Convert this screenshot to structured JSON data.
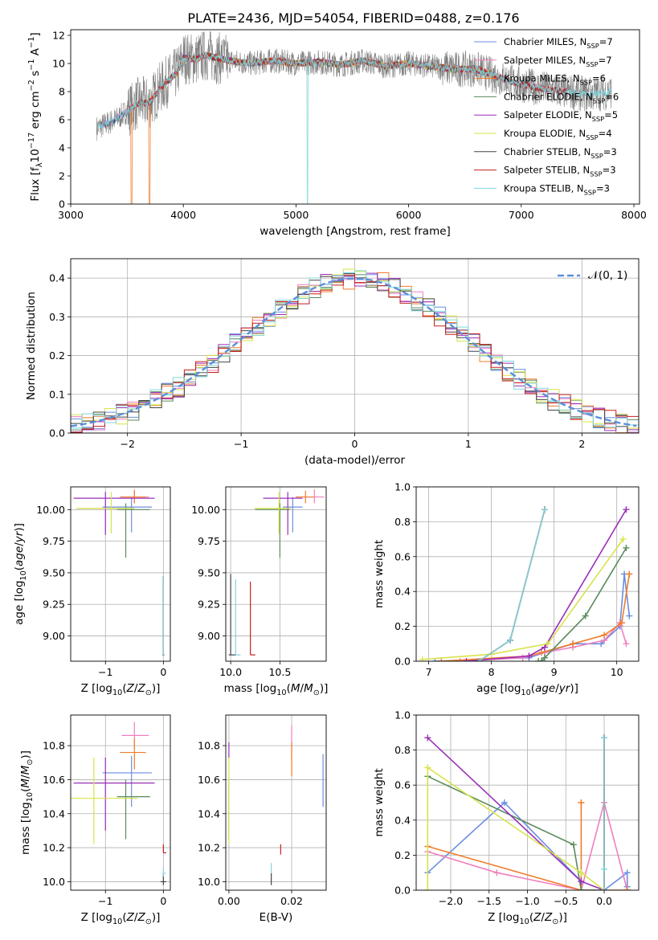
{
  "title": "PLATE=2436, MJD=54054, FIBERID=0488, z=0.176",
  "colors": [
    "#6a8ee0",
    "#f07fbf",
    "#f07c2a",
    "#5a8a5e",
    "#9a2fb8",
    "#d8e34a",
    "#444444",
    "#c81e1e",
    "#7fd6de"
  ],
  "series_names": [
    "Chabrier MILES, N<sub>SSP</sub>=7",
    "Salpeter MILES, N<sub>SSP</sub>=7",
    "Kroupa MILES, N<sub>SSP</sub>=6",
    "Chabrier ELODIE, N<sub>SSP</sub>=6",
    "Salpeter ELODIE, N<sub>SSP</sub>=5",
    "Kroupa ELODIE, N<sub>SSP</sub>=4",
    "Chabrier STELIB, N<sub>SSP</sub>=3",
    "Salpeter STELIB, N<sub>SSP</sub>=3",
    "Kroupa STELIB, N<sub>SSP</sub>=3"
  ],
  "chart_data": [
    {
      "id": "spectrum",
      "type": "line",
      "title": "PLATE=2436, MJD=54054, FIBERID=0488, z=0.176",
      "xlabel": "wavelength [Angstrom, rest frame]",
      "ylabel": "Flux [f<sub>λ</sub>10<sup>−17</sup> erg cm<sup>−2</sup> s<sup>−1</sup> A<sup>−1</sup>]",
      "xlim": [
        3000,
        8050
      ],
      "ylim": [
        0,
        12.4
      ],
      "xticks": [
        3000,
        4000,
        5000,
        6000,
        7000,
        8000
      ],
      "yticks": [
        0,
        2,
        4,
        6,
        8,
        10,
        12
      ],
      "legend": "right",
      "data_color": "#808080",
      "continuum": {
        "x": [
          3230,
          3400,
          3500,
          3600,
          3700,
          3800,
          3950,
          4000,
          4100,
          4200,
          4400,
          4600,
          4800,
          5000,
          5200,
          5400,
          5600,
          5800,
          6000,
          6200,
          6400,
          6600,
          6800,
          7000,
          7200,
          7400,
          7600,
          7800
        ],
        "y": [
          5.4,
          6.0,
          6.6,
          7.2,
          7.2,
          8.3,
          9.4,
          10.4,
          10.3,
          10.6,
          10.2,
          10.0,
          10.2,
          10.0,
          10.1,
          9.9,
          10.2,
          9.8,
          10.0,
          9.8,
          9.6,
          9.6,
          9.0,
          8.5,
          8.2,
          8.0,
          7.8,
          8.0
        ]
      }
    },
    {
      "id": "residuals",
      "type": "histogram",
      "xlabel": "(data-model)/error",
      "ylabel": "Normed distribution",
      "xlim": [
        -2.5,
        2.5
      ],
      "ylim": [
        0,
        0.45
      ],
      "xticks": [
        -2,
        -1,
        0,
        1,
        2
      ],
      "yticks": [
        0.0,
        0.1,
        0.2,
        0.3,
        0.4
      ],
      "bin_width": 0.1,
      "reference": {
        "label": "𝒩(0, 1)",
        "mean": 0,
        "sigma": 1,
        "color": "#5b8fd9"
      },
      "grid": true
    },
    {
      "id": "age_vs_Z",
      "type": "errorbar",
      "xlabel": "Z [log<sub>10</sub>(<i>Z</i>/<i>Z</i><sub>⊙</sub>)]",
      "ylabel": "age  [log<sub>10</sub>(<i>age</i>/<i>yr</i>)]",
      "xlim": [
        -1.6,
        0.12
      ],
      "ylim": [
        8.8,
        10.18
      ],
      "xticks": [
        -1,
        0
      ],
      "yticks": [
        9.0,
        9.25,
        9.5,
        9.75,
        10.0
      ],
      "points": [
        {
          "x": -0.55,
          "y": 10.02,
          "xerr": [
            0.5,
            0.35
          ],
          "yerr": [
            0.2,
            0.08
          ]
        },
        {
          "x": -0.5,
          "y": 10.1,
          "xerr": [
            0.22,
            0.25
          ],
          "yerr": [
            0.05,
            0.06
          ]
        },
        {
          "x": -0.5,
          "y": 10.1,
          "xerr": [
            0.25,
            0.2
          ],
          "yerr": [
            0.05,
            0.05
          ]
        },
        {
          "x": -0.65,
          "y": 10.0,
          "xerr": [
            0.15,
            0.42
          ],
          "yerr": [
            0.38,
            0.05
          ]
        },
        {
          "x": -1.0,
          "y": 10.09,
          "xerr": [
            0.55,
            0.85
          ],
          "yerr": [
            0.29,
            0.05
          ]
        },
        {
          "x": -0.9,
          "y": 10.01,
          "xerr": [
            0.6,
            0.4
          ],
          "yerr": [
            0.2,
            0.13
          ]
        },
        {
          "x": 0.0,
          "y": 8.85,
          "xerr": [
            0.02,
            0.02
          ],
          "yerr": [
            0.0,
            0.62
          ]
        },
        {
          "x": 0.0,
          "y": 8.85,
          "xerr": [
            0.02,
            0.02
          ],
          "yerr": [
            0.0,
            0.62
          ]
        },
        {
          "x": 0.0,
          "y": 8.85,
          "xerr": [
            0.02,
            0.02
          ],
          "yerr": [
            0.0,
            0.62
          ]
        }
      ]
    },
    {
      "id": "age_vs_mass",
      "type": "errorbar",
      "xlabel": "mass [log<sub>10</sub>(<i>M</i>/<i>M</i><sub>⊙</sub>)]",
      "ylabel": "",
      "xlim": [
        9.95,
        10.97
      ],
      "ylim": [
        8.8,
        10.18
      ],
      "xticks": [
        10.0,
        10.5
      ],
      "yticks": [
        9.0,
        9.25,
        9.5,
        9.75,
        10.0
      ],
      "points": [
        {
          "x": 10.63,
          "y": 10.02,
          "xerr": [
            0.1,
            0.1
          ],
          "yerr": [
            0.2,
            0.08
          ]
        },
        {
          "x": 10.85,
          "y": 10.1,
          "xerr": [
            0.08,
            0.1
          ],
          "yerr": [
            0.05,
            0.06
          ]
        },
        {
          "x": 10.76,
          "y": 10.1,
          "xerr": [
            0.1,
            0.08
          ],
          "yerr": [
            0.05,
            0.05
          ]
        },
        {
          "x": 10.5,
          "y": 10.0,
          "xerr": [
            0.25,
            0.1
          ],
          "yerr": [
            0.38,
            0.05
          ]
        },
        {
          "x": 10.58,
          "y": 10.09,
          "xerr": [
            0.25,
            0.15
          ],
          "yerr": [
            0.29,
            0.05
          ]
        },
        {
          "x": 10.49,
          "y": 10.01,
          "xerr": [
            0.25,
            0.12
          ],
          "yerr": [
            0.2,
            0.13
          ]
        },
        {
          "x": 10.0,
          "y": 8.85,
          "xerr": [
            0.02,
            0.05
          ],
          "yerr": [
            0.0,
            0.64
          ]
        },
        {
          "x": 10.2,
          "y": 8.85,
          "xerr": [
            0.0,
            0.05
          ],
          "yerr": [
            0.0,
            0.58
          ]
        },
        {
          "x": 10.05,
          "y": 8.85,
          "xerr": [
            0.0,
            0.05
          ],
          "yerr": [
            0.0,
            0.6
          ]
        }
      ]
    },
    {
      "id": "weight_vs_age",
      "type": "line",
      "xlabel": "age  [log<sub>10</sub>(<i>age</i>/<i>yr</i>)]",
      "ylabel": "mass weight",
      "xlim": [
        6.8,
        10.35
      ],
      "ylim": [
        0,
        1.0
      ],
      "xticks": [
        7,
        8,
        9,
        10
      ],
      "yticks": [
        0.0,
        0.2,
        0.4,
        0.6,
        0.8,
        1.0
      ],
      "series": [
        {
          "x": [
            7.1,
            8.6,
            8.85,
            9.3,
            9.75,
            10.05,
            10.12,
            10.2
          ],
          "y": [
            0.0,
            0.02,
            0.05,
            0.1,
            0.1,
            0.2,
            0.5,
            0.26
          ]
        },
        {
          "x": [
            7.5,
            8.5,
            8.85,
            9.3,
            9.8,
            10.05,
            10.15
          ],
          "y": [
            0.0,
            0.02,
            0.05,
            0.08,
            0.12,
            0.22,
            0.1
          ]
        },
        {
          "x": [
            7.2,
            8.6,
            8.8,
            9.3,
            9.8,
            10.08,
            10.2
          ],
          "y": [
            0.0,
            0.03,
            0.05,
            0.1,
            0.15,
            0.22,
            0.5
          ]
        },
        {
          "x": [
            8.75,
            8.8,
            8.85,
            9.5,
            10.15
          ],
          "y": [
            0.0,
            0.0,
            0.02,
            0.26,
            0.65
          ]
        },
        {
          "x": [
            7.6,
            8.6,
            8.85,
            10.15
          ],
          "y": [
            0.0,
            0.03,
            0.08,
            0.87
          ]
        },
        {
          "x": [
            6.9,
            8.0,
            8.9,
            10.1
          ],
          "y": [
            0.01,
            0.04,
            0.1,
            0.7
          ]
        },
        {
          "x": [
            7.8,
            8.3,
            8.85
          ],
          "y": [
            0.0,
            0.12,
            0.87
          ]
        },
        {
          "x": [
            7.8,
            8.3,
            8.85
          ],
          "y": [
            0.0,
            0.12,
            0.87
          ]
        },
        {
          "x": [
            7.8,
            8.3,
            8.85
          ],
          "y": [
            0.0,
            0.12,
            0.87
          ]
        }
      ]
    },
    {
      "id": "mass_vs_Z",
      "type": "errorbar",
      "xlabel": "Z [log<sub>10</sub>(<i>Z</i>/<i>Z</i><sub>⊙</sub>)]",
      "ylabel": "mass [log<sub>10</sub>(<i>M</i>/<i>M</i><sub>⊙</sub>)]",
      "xlim": [
        -1.6,
        0.12
      ],
      "ylim": [
        9.95,
        10.98
      ],
      "xticks": [
        -1,
        0
      ],
      "yticks": [
        10.0,
        10.2,
        10.4,
        10.6,
        10.8
      ],
      "points": [
        {
          "x": -0.55,
          "y": 10.64,
          "xerr": [
            0.5,
            0.35
          ],
          "yerr": [
            0.2,
            0.1
          ]
        },
        {
          "x": -0.5,
          "y": 10.86,
          "xerr": [
            0.22,
            0.25
          ],
          "yerr": [
            0.08,
            0.08
          ]
        },
        {
          "x": -0.5,
          "y": 10.76,
          "xerr": [
            0.25,
            0.2
          ],
          "yerr": [
            0.1,
            0.08
          ]
        },
        {
          "x": -0.65,
          "y": 10.5,
          "xerr": [
            0.15,
            0.42
          ],
          "yerr": [
            0.25,
            0.1
          ]
        },
        {
          "x": -1.0,
          "y": 10.58,
          "xerr": [
            0.55,
            0.85
          ],
          "yerr": [
            0.28,
            0.15
          ]
        },
        {
          "x": -1.2,
          "y": 10.49,
          "xerr": [
            0.6,
            0.75
          ],
          "yerr": [
            0.27,
            0.24
          ]
        },
        {
          "x": 0.0,
          "y": 10.0,
          "xerr": [
            0.05,
            0.05
          ],
          "yerr": [
            0.02,
            0.05
          ]
        },
        {
          "x": 0.0,
          "y": 10.17,
          "xerr": [
            0.0,
            0.05
          ],
          "yerr": [
            0.0,
            0.05
          ]
        },
        {
          "x": 0.0,
          "y": 10.05,
          "xerr": [
            0.0,
            0.04
          ],
          "yerr": [
            0.02,
            0.03
          ]
        }
      ]
    },
    {
      "id": "mass_vs_ebv",
      "type": "errorbar",
      "xlabel": "E(B-V)",
      "ylabel": "",
      "xlim": [
        -0.001,
        0.031
      ],
      "ylim": [
        9.95,
        10.98
      ],
      "xticks": [
        0.0,
        0.02
      ],
      "yticks": [
        10.0,
        10.2,
        10.4,
        10.6,
        10.8
      ],
      "points": [
        {
          "x": 0.03,
          "y": 10.6,
          "xerr": [
            0,
            0
          ],
          "yerr": [
            0.16,
            0.15
          ]
        },
        {
          "x": 0.02,
          "y": 10.82,
          "xerr": [
            0,
            0
          ],
          "yerr": [
            0.1,
            0.1
          ]
        },
        {
          "x": 0.02,
          "y": 10.72,
          "xerr": [
            0,
            0
          ],
          "yerr": [
            0.1,
            0.1
          ]
        },
        {
          "x": 0.0,
          "y": 10.5,
          "xerr": [
            0,
            0
          ],
          "yerr": [
            0.25,
            0.1
          ]
        },
        {
          "x": 0.0,
          "y": 10.78,
          "xerr": [
            0,
            0
          ],
          "yerr": [
            0.05,
            0.04
          ]
        },
        {
          "x": 0.0,
          "y": 10.49,
          "xerr": [
            0,
            0
          ],
          "yerr": [
            0.27,
            0.24
          ]
        },
        {
          "x": 0.0135,
          "y": 10.0,
          "xerr": [
            0,
            0
          ],
          "yerr": [
            0.02,
            0.05
          ]
        },
        {
          "x": 0.0165,
          "y": 10.19,
          "xerr": [
            0,
            0
          ],
          "yerr": [
            0.03,
            0.03
          ]
        },
        {
          "x": 0.0135,
          "y": 10.07,
          "xerr": [
            0,
            0
          ],
          "yerr": [
            0.02,
            0.04
          ]
        }
      ]
    },
    {
      "id": "weight_vs_Z",
      "type": "line",
      "xlabel": "Z [log<sub>10</sub>(<i>Z</i>/<i>Z</i><sub>⊙</sub>)]",
      "ylabel": "mass weight",
      "xlim": [
        -2.45,
        0.45
      ],
      "ylim": [
        0,
        1.0
      ],
      "xticks": [
        -2.0,
        -1.5,
        -1.0,
        -0.5,
        0.0
      ],
      "yticks": [
        0.0,
        0.2,
        0.4,
        0.6,
        0.8,
        1.0
      ],
      "series": [
        {
          "x": [
            -2.3,
            -1.3,
            -0.3,
            -0.3,
            0.0,
            0.3,
            0.3
          ],
          "y": [
            0.1,
            0.5,
            0.05,
            0.0,
            0.0,
            0.1,
            0.02
          ]
        },
        {
          "x": [
            -2.3,
            -1.4,
            -0.3,
            0.0,
            0.3
          ],
          "y": [
            0.22,
            0.1,
            0.0,
            0.5,
            0.0
          ]
        },
        {
          "x": [
            -2.3,
            -0.3,
            -0.3,
            -0.3,
            0.3
          ],
          "y": [
            0.25,
            0.0,
            0.5,
            0.0,
            0.0
          ]
        },
        {
          "x": [
            -2.3,
            -0.4,
            -0.3,
            0.0,
            0.0
          ],
          "y": [
            0.65,
            0.26,
            0.0,
            0.0,
            0.87
          ]
        },
        {
          "x": [
            -2.3,
            -0.3,
            0.0
          ],
          "y": [
            0.87,
            0.05,
            0.0
          ]
        },
        {
          "x": [
            -2.3,
            -2.3,
            -0.3,
            0.0
          ],
          "y": [
            0.0,
            0.7,
            0.1,
            0.0
          ]
        },
        {
          "x": [
            0.0,
            0.0
          ],
          "y": [
            0.0,
            0.87
          ]
        },
        {
          "x": [
            0.0,
            0.0
          ],
          "y": [
            0.0,
            0.87
          ]
        },
        {
          "x": [
            0.0,
            0.0,
            0.0
          ],
          "y": [
            0.0,
            0.12,
            0.87
          ]
        }
      ]
    }
  ]
}
